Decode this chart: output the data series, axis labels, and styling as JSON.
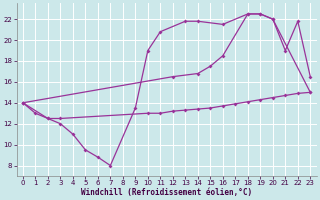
{
  "xlabel": "Windchill (Refroidissement éolien,°C)",
  "background_color": "#cce8ea",
  "grid_color": "#ffffff",
  "line_color": "#993399",
  "spine_color": "#888888",
  "xlim": [
    -0.5,
    23.5
  ],
  "ylim": [
    7.0,
    23.5
  ],
  "xticks": [
    0,
    1,
    2,
    3,
    4,
    5,
    6,
    7,
    8,
    9,
    10,
    11,
    12,
    13,
    14,
    15,
    16,
    17,
    18,
    19,
    20,
    21,
    22,
    23
  ],
  "yticks": [
    8,
    10,
    12,
    14,
    16,
    18,
    20,
    22
  ],
  "line1_x": [
    0,
    1,
    2,
    3,
    10,
    11,
    12,
    13,
    14,
    15,
    16,
    17,
    18,
    19,
    20,
    21,
    22,
    23
  ],
  "line1_y": [
    14.0,
    13.0,
    12.5,
    12.5,
    13.0,
    13.0,
    13.2,
    13.3,
    13.4,
    13.5,
    13.7,
    13.9,
    14.1,
    14.3,
    14.5,
    14.7,
    14.9,
    15.0
  ],
  "line2_x": [
    0,
    2,
    3,
    4,
    5,
    6,
    7,
    9,
    10,
    11,
    13,
    14,
    16,
    18,
    19,
    20,
    21,
    22,
    23
  ],
  "line2_y": [
    14.0,
    12.5,
    12.0,
    11.0,
    9.5,
    8.8,
    8.0,
    13.5,
    19.0,
    20.8,
    21.8,
    21.8,
    21.5,
    22.5,
    22.5,
    22.0,
    19.0,
    21.8,
    16.5
  ],
  "line3_x": [
    0,
    12,
    14,
    15,
    16,
    18,
    19,
    20,
    23
  ],
  "line3_y": [
    14.0,
    16.5,
    16.8,
    17.5,
    18.5,
    22.5,
    22.5,
    22.0,
    15.0
  ],
  "marker_size": 2.0,
  "line_width": 0.9,
  "tick_fontsize": 5.0,
  "xlabel_fontsize": 5.5
}
